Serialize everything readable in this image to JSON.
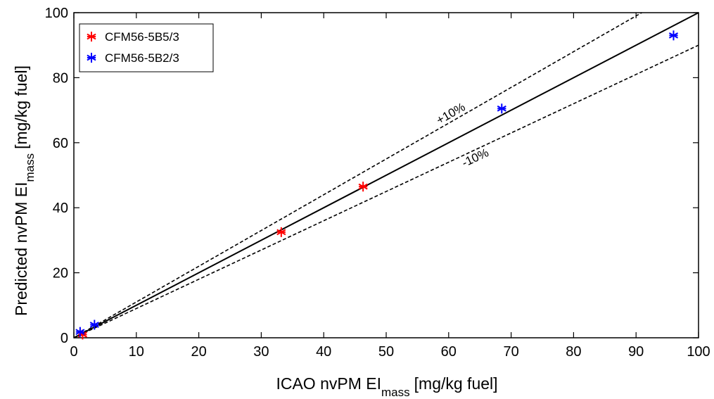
{
  "chart_data": {
    "type": "scatter",
    "xlabel": {
      "main": "ICAO nvPM EI",
      "sub": "mass",
      "unit": "[mg/kg fuel]"
    },
    "ylabel": {
      "main": "Predicted nvPM EI",
      "sub": "mass",
      "unit": "[mg/kg fuel]"
    },
    "xlim": [
      0,
      100
    ],
    "ylim": [
      0,
      100
    ],
    "xticks": [
      0,
      10,
      20,
      30,
      40,
      50,
      60,
      70,
      80,
      90,
      100
    ],
    "yticks": [
      0,
      20,
      40,
      60,
      80,
      100
    ],
    "grid": false,
    "legend_position": "top-left",
    "series": [
      {
        "name": "CFM56-5B5/3",
        "color": "#ff0000",
        "marker": "asterisk",
        "x": [
          1.4,
          33.2,
          46.3
        ],
        "y": [
          1.0,
          32.5,
          46.5
        ]
      },
      {
        "name": "CFM56-5B2/3",
        "color": "#0000ff",
        "marker": "asterisk",
        "x": [
          1.0,
          3.3,
          68.5,
          96.0
        ],
        "y": [
          1.8,
          4.0,
          70.5,
          93.0
        ]
      }
    ],
    "reference_lines": [
      {
        "label": "",
        "style": "solid",
        "factor": 1.0
      },
      {
        "label": "+10%",
        "style": "dashed",
        "factor": 1.1
      },
      {
        "label": "-10%",
        "style": "dashed",
        "factor": 0.9
      }
    ]
  }
}
